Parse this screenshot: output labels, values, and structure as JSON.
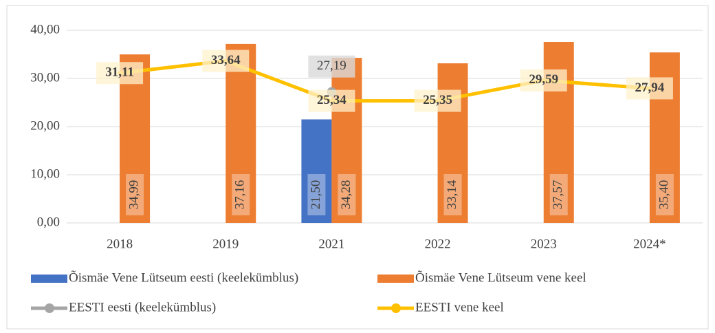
{
  "chart_data": {
    "type": "bar",
    "categories": [
      "2018",
      "2019",
      "2021",
      "2022",
      "2023",
      "2024*"
    ],
    "ylim": [
      0,
      40
    ],
    "yticks": [
      {
        "value": 0,
        "label": "0,00"
      },
      {
        "value": 10,
        "label": "10,00"
      },
      {
        "value": 20,
        "label": "20,00"
      },
      {
        "value": 30,
        "label": "30,00"
      },
      {
        "value": 40,
        "label": "40,00"
      }
    ],
    "grid": true,
    "legend": "bottom",
    "series": [
      {
        "name": "Õismäe Vene Lütseum eesti (keelekümblus)",
        "type": "bar",
        "color": "#4472c4",
        "values": [
          null,
          null,
          21.5,
          null,
          null,
          null
        ],
        "value_labels": [
          null,
          null,
          "21,50",
          null,
          null,
          null
        ]
      },
      {
        "name": "Õismäe Vene Lütseum vene keel",
        "type": "bar",
        "color": "#ed7d31",
        "values": [
          34.99,
          37.16,
          34.28,
          33.14,
          37.57,
          35.4
        ],
        "value_labels": [
          "34,99",
          "37,16",
          "34,28",
          "33,14",
          "37,57",
          "35,40"
        ]
      },
      {
        "name": "EESTI eesti (keelekümblus)",
        "type": "line",
        "color": "#a5a5a5",
        "values": [
          null,
          null,
          27.19,
          null,
          null,
          null
        ],
        "value_labels": [
          null,
          null,
          "27,19",
          null,
          null,
          null
        ]
      },
      {
        "name": "EESTI vene keel",
        "type": "line",
        "color": "#ffc000",
        "values": [
          31.11,
          33.64,
          25.34,
          25.35,
          29.59,
          27.94
        ],
        "value_labels": [
          "31,11",
          "33,64",
          "25,34",
          "25,35",
          "29,59",
          "27,94"
        ]
      }
    ]
  }
}
